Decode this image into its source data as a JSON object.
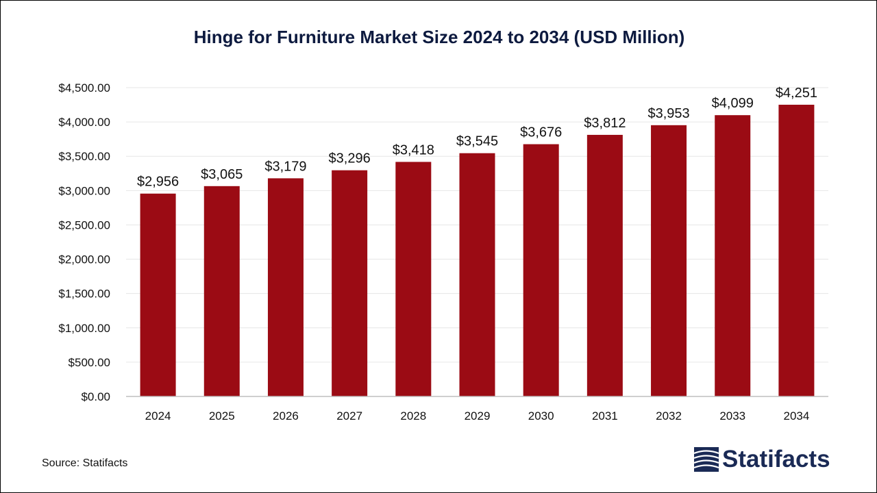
{
  "title": "Hinge for Furniture Market Size 2024 to 2034 (USD Million)",
  "source": "Source: Statifacts",
  "brand": "Statifacts",
  "colors": {
    "bar": "#9b0b14",
    "title": "#0d1a3f",
    "grid": "#e6e6e6",
    "brand": "#1a2a55"
  },
  "chart_data": {
    "type": "bar",
    "title": "Hinge for Furniture Market Size 2024 to 2034 (USD Million)",
    "categories": [
      "2024",
      "2025",
      "2026",
      "2027",
      "2028",
      "2029",
      "2030",
      "2031",
      "2032",
      "2033",
      "2034"
    ],
    "values": [
      2956,
      3065,
      3179,
      3296,
      3418,
      3545,
      3676,
      3812,
      3953,
      4099,
      4251
    ],
    "data_labels": [
      "$2,956",
      "$3,065",
      "$3,179",
      "$3,296",
      "$3,418",
      "$3,545",
      "$3,676",
      "$3,812",
      "$3,953",
      "$4,099",
      "$4,251"
    ],
    "yticks": [
      0,
      500,
      1000,
      1500,
      2000,
      2500,
      3000,
      3500,
      4000,
      4500
    ],
    "ytick_labels": [
      "$0.00",
      "$500.00",
      "$1,000.00",
      "$1,500.00",
      "$2,000.00",
      "$2,500.00",
      "$3,000.00",
      "$3,500.00",
      "$4,000.00",
      "$4,500.00"
    ],
    "ylim": [
      0,
      4500
    ],
    "grid": true,
    "legend": "none"
  }
}
